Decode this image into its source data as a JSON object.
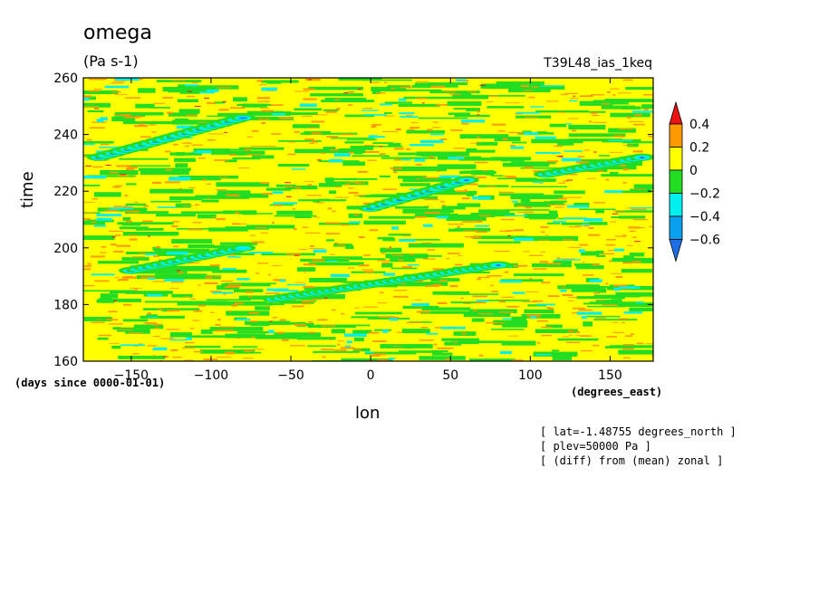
{
  "header": {
    "title": "omega",
    "units": "(Pa s-1)",
    "run": "T39L48_ias_1keq"
  },
  "annotations": [
    "[ lat=-1.48755 degrees_north ]",
    "[ plev=50000 Pa ]",
    "[ (diff) from (mean) zonal ]"
  ],
  "chart_data": {
    "type": "heatmap",
    "xlabel": "lon",
    "ylabel": "time",
    "x_units": "(degrees_east)",
    "y_units": "(days since 0000-01-01)",
    "xlim": [
      -180,
      177
    ],
    "ylim": [
      160,
      260
    ],
    "x_ticks": [
      -150,
      -100,
      -50,
      0,
      50,
      100,
      150
    ],
    "y_ticks": [
      160,
      180,
      200,
      220,
      240,
      260
    ],
    "colorbar": {
      "levels": [
        -0.6,
        -0.4,
        -0.2,
        0,
        0.2,
        0.4
      ],
      "level_labels": [
        "-0.6",
        "-0.4",
        "-0.2",
        "0",
        "0.2",
        "0.4"
      ],
      "colors": [
        "#1e6ee8",
        "#0aa0f0",
        "#00f0f0",
        "#22dd22",
        "#ffff00",
        "#ff9900",
        "#ee1111"
      ]
    },
    "background_value_range": [
      0,
      0.2
    ],
    "features": [
      {
        "type": "negative-band",
        "lon_start": -60,
        "time_start": 182,
        "lon_end": 80,
        "time_end": 194,
        "min_value": -0.6
      },
      {
        "type": "negative-band",
        "lon_start": 0,
        "time_start": 214,
        "lon_end": 60,
        "time_end": 224,
        "min_value": -0.6
      },
      {
        "type": "negative-band",
        "lon_start": 110,
        "time_start": 226,
        "lon_end": 170,
        "time_end": 232,
        "min_value": -0.6
      },
      {
        "type": "negative-band",
        "lon_start": -170,
        "time_start": 232,
        "lon_end": -80,
        "time_end": 246,
        "min_value": -0.4
      },
      {
        "type": "negative-band",
        "lon_start": -150,
        "time_start": 192,
        "lon_end": -80,
        "time_end": 200,
        "min_value": -0.4
      }
    ]
  }
}
